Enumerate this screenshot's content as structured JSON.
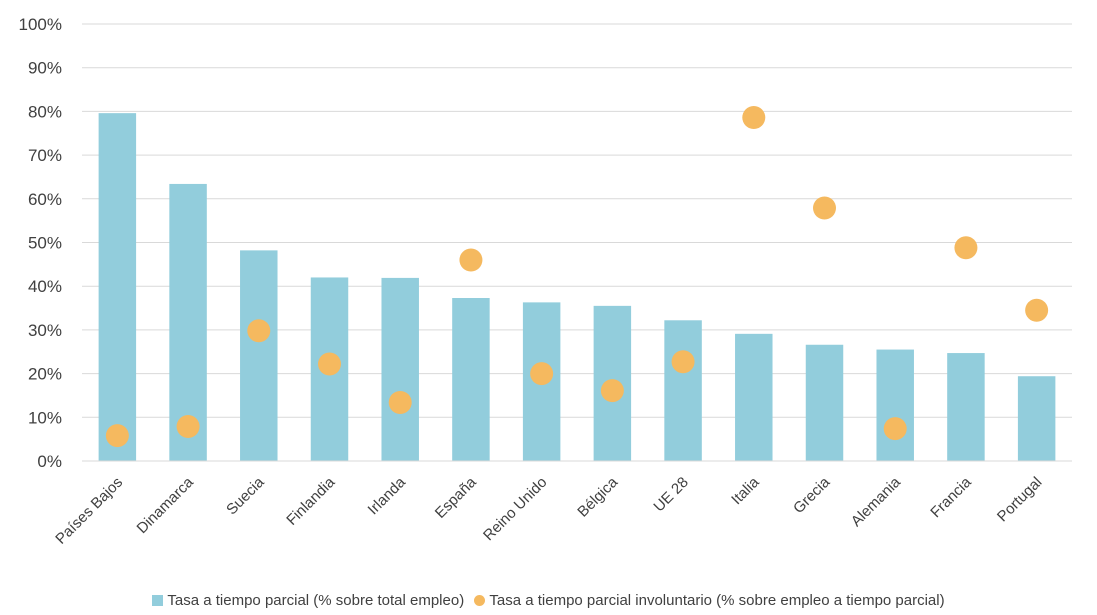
{
  "chart_data": {
    "type": "bar",
    "categories": [
      "Países Bajos",
      "Dinamarca",
      "Suecia",
      "Finlandia",
      "Irlanda",
      "España",
      "Reino Unido",
      "Bélgica",
      "UE 28",
      "Italia",
      "Grecia",
      "Alemania",
      "Francia",
      "Portugal"
    ],
    "series": [
      {
        "name": "Tasa a tiempo parcial (% sobre total empleo)",
        "type": "bar",
        "color": "#92cddc",
        "values": [
          79.6,
          63.4,
          48.2,
          42.0,
          41.9,
          37.3,
          36.3,
          35.5,
          32.2,
          29.1,
          26.6,
          25.5,
          24.7,
          19.4
        ]
      },
      {
        "name": "Tasa a tiempo parcial involuntario (% sobre empleo a tiempo parcial)",
        "type": "scatter",
        "color": "#f5b95f",
        "values": [
          5.8,
          7.9,
          29.8,
          22.2,
          13.4,
          46.0,
          20.0,
          16.1,
          22.7,
          78.6,
          57.9,
          7.4,
          null,
          34.5
        ]
      }
    ],
    "extra_points": [
      {
        "category": "Francia",
        "value": 48.8
      }
    ],
    "ylim": [
      0,
      100
    ],
    "yticks": [
      "0%",
      "10%",
      "20%",
      "30%",
      "40%",
      "50%",
      "60%",
      "70%",
      "80%",
      "90%",
      "100%"
    ],
    "grid": true,
    "legend_position": "bottom",
    "title": "",
    "xlabel": "",
    "ylabel": ""
  }
}
